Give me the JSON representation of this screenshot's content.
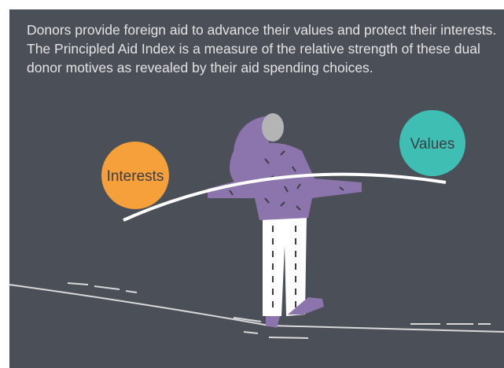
{
  "intro": "Donors provide foreign aid to advance their values and protect their interests. The Principled Aid Index is a measure of the relative strength of these dual donor motives as revealed by their aid spending choices.",
  "labels": {
    "left": "Interests",
    "right": "Values"
  }
}
